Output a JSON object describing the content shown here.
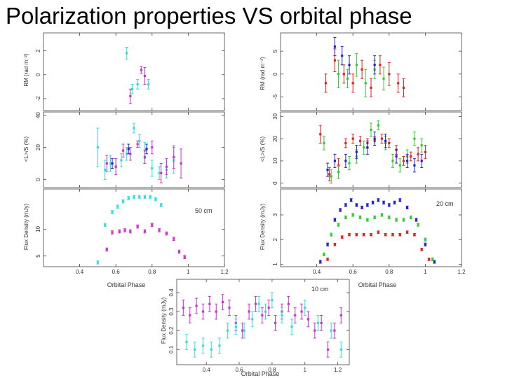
{
  "slide": {
    "title": "Polarization properties VS orbital phase"
  },
  "colors": {
    "cyan": "#33dddd",
    "magenta": "#cc33cc",
    "red": "#dd2222",
    "green": "#33cc33",
    "blue": "#2222cc",
    "axis": "#444444"
  },
  "chart_data": [
    {
      "type": "scatter",
      "name": "panel-50cm",
      "annotation": "50 cm",
      "xlabel": "Orbital Phase",
      "xlim": [
        0.2,
        1.2
      ],
      "xticks": [
        "0.4",
        "0.6",
        "0.8",
        "1",
        "1.2"
      ],
      "subplots": [
        {
          "ylabel": "RM (rad m⁻²)",
          "ylim": [
            -3,
            3.5
          ],
          "yticks": [
            "-2",
            "0",
            "2"
          ],
          "series": [
            {
              "name": "cyan",
              "color": "cyan",
              "x": [
                0.66,
                0.69,
                0.72,
                0.78
              ],
              "y": [
                1.8,
                -1.2,
                -0.8,
                -0.8
              ],
              "err": [
                0.5,
                0.4,
                0.4,
                0.4
              ]
            },
            {
              "name": "magenta",
              "color": "magenta",
              "x": [
                0.68,
                0.74,
                0.76
              ],
              "y": [
                -1.8,
                0.4,
                -0.1
              ],
              "err": [
                0.6,
                0.3,
                0.7
              ]
            }
          ]
        },
        {
          "ylabel": "<L>/S (%)",
          "ylim": [
            -5,
            42
          ],
          "yticks": [
            "0",
            "20",
            "40"
          ],
          "series": [
            {
              "name": "cyan",
              "color": "cyan",
              "x": [
                0.5,
                0.54,
                0.57,
                0.6,
                0.63,
                0.66,
                0.7,
                0.73,
                0.76,
                0.8,
                0.84,
                0.88,
                0.92
              ],
              "y": [
                20,
                6,
                10,
                8,
                12,
                16,
                32,
                24,
                18,
                7,
                4,
                6,
                12
              ],
              "err": [
                12,
                6,
                5,
                5,
                4,
                4,
                3,
                4,
                5,
                5,
                4,
                5,
                8
              ]
            },
            {
              "name": "magenta",
              "color": "magenta",
              "x": [
                0.55,
                0.6,
                0.64,
                0.68,
                0.72,
                0.76,
                0.8,
                0.85,
                0.88,
                0.92,
                0.96
              ],
              "y": [
                10,
                8,
                18,
                16,
                22,
                14,
                20,
                4,
                8,
                14,
                10
              ],
              "err": [
                5,
                5,
                4,
                4,
                2,
                4,
                4,
                6,
                5,
                7,
                9
              ]
            },
            {
              "name": "blue",
              "color": "blue",
              "x": [
                0.58,
                0.67,
                0.77
              ],
              "y": [
                10,
                19,
                19
              ],
              "err": [
                3,
                3,
                3
              ]
            }
          ]
        },
        {
          "ylabel": "Flux Density (mJy)",
          "ylim": [
            3,
            17.5
          ],
          "yticks": [
            "5",
            "10"
          ],
          "series": [
            {
              "name": "cyan",
              "color": "cyan",
              "x": [
                0.5,
                0.54,
                0.58,
                0.61,
                0.64,
                0.67,
                0.7,
                0.73,
                0.76,
                0.79,
                0.82,
                0.85
              ],
              "y": [
                3.8,
                10.8,
                13.2,
                14.2,
                15.2,
                15.8,
                16,
                16,
                16,
                16,
                15.6,
                14.5
              ],
              "err": [
                0.3,
                0.3,
                0.3,
                0.3,
                0.3,
                0.3,
                0.3,
                0.3,
                0.3,
                0.3,
                0.3,
                0.3
              ]
            },
            {
              "name": "magenta",
              "color": "magenta",
              "x": [
                0.55,
                0.58,
                0.62,
                0.65,
                0.68,
                0.72,
                0.76,
                0.8,
                0.84,
                0.88,
                0.92,
                0.95,
                0.98
              ],
              "y": [
                6.2,
                9.4,
                9.6,
                9.8,
                9.6,
                10.5,
                9.6,
                10.8,
                9.8,
                9.2,
                8.2,
                5.8,
                4.8
              ],
              "err": [
                0.3,
                0.3,
                0.3,
                0.3,
                0.3,
                0.3,
                0.3,
                0.3,
                0.3,
                0.3,
                0.3,
                0.3,
                0.3
              ]
            }
          ]
        }
      ]
    },
    {
      "type": "scatter",
      "name": "panel-20cm",
      "annotation": "20 cm",
      "xlabel": "Orbital Phase",
      "xlim": [
        0.2,
        1.2
      ],
      "xticks": [
        "0.4",
        "0.6",
        "0.8",
        "1",
        "1.2"
      ],
      "subplots": [
        {
          "ylabel": "RM (rad m⁻²)",
          "ylim": [
            -8,
            9
          ],
          "yticks": [
            "-5",
            "0",
            "5"
          ],
          "series": [
            {
              "name": "red",
              "color": "red",
              "x": [
                0.45,
                0.5,
                0.55,
                0.6,
                0.65,
                0.7,
                0.75,
                0.8,
                0.85,
                0.88
              ],
              "y": [
                -2,
                3,
                0,
                -2,
                1,
                -3,
                2,
                0,
                -2,
                -3
              ],
              "err": [
                2,
                2.5,
                2,
                2,
                2,
                2,
                2,
                2.5,
                2,
                2
              ]
            },
            {
              "name": "green",
              "color": "green",
              "x": [
                0.52,
                0.57,
                0.62,
                0.67,
                0.72,
                0.77
              ],
              "y": [
                0,
                -1,
                2,
                -2,
                1,
                -1
              ],
              "err": [
                3,
                2,
                2.5,
                3,
                2,
                2.5
              ]
            },
            {
              "name": "blue",
              "color": "blue",
              "x": [
                0.5,
                0.54,
                0.58,
                0.72
              ],
              "y": [
                6,
                4,
                2,
                2
              ],
              "err": [
                2,
                2,
                2,
                2
              ]
            }
          ]
        },
        {
          "ylabel": "<L>/S (%)",
          "ylim": [
            -2,
            32
          ],
          "yticks": [
            "0",
            "10",
            "20",
            "30"
          ],
          "series": [
            {
              "name": "red",
              "color": "red",
              "x": [
                0.42,
                0.47,
                0.52,
                0.56,
                0.6,
                0.64,
                0.68,
                0.72,
                0.76,
                0.8,
                0.84,
                0.88,
                0.92,
                0.96,
                1.0
              ],
              "y": [
                22,
                4,
                8,
                18,
                20,
                19,
                18,
                19,
                20,
                18,
                15,
                10,
                12,
                13,
                14
              ],
              "err": [
                4,
                3,
                3,
                2,
                2,
                2,
                2,
                2,
                2,
                2,
                2,
                2,
                2,
                3,
                3
              ]
            },
            {
              "name": "green",
              "color": "green",
              "x": [
                0.44,
                0.48,
                0.52,
                0.58,
                0.62,
                0.66,
                0.7,
                0.74,
                0.78,
                0.82,
                0.86,
                0.9,
                0.94,
                0.98
              ],
              "y": [
                18,
                3,
                5,
                9,
                12,
                16,
                24,
                26,
                18,
                10,
                8,
                12,
                20,
                17
              ],
              "err": [
                3,
                3,
                3,
                3,
                3,
                3,
                3,
                2,
                3,
                3,
                3,
                3,
                3,
                3
              ]
            },
            {
              "name": "blue",
              "color": "blue",
              "x": [
                0.46,
                0.5,
                0.56,
                0.62,
                0.68,
                0.72,
                0.78,
                0.84,
                0.9,
                0.94,
                0.98
              ],
              "y": [
                6,
                10,
                10,
                14,
                16,
                20,
                19,
                12,
                10,
                8,
                10
              ],
              "err": [
                3,
                3,
                3,
                3,
                3,
                3,
                3,
                3,
                3,
                3,
                3
              ]
            }
          ]
        },
        {
          "ylabel": "Flux Density (mJy)",
          "ylim": [
            0.9,
            4.05
          ],
          "yticks": [
            "1",
            "2",
            "3"
          ],
          "series": [
            {
              "name": "blue",
              "color": "blue",
              "x": [
                0.42,
                0.46,
                0.5,
                0.53,
                0.56,
                0.59,
                0.62,
                0.65,
                0.68,
                0.71,
                0.74,
                0.77,
                0.8,
                0.83,
                0.86,
                0.9,
                0.95,
                1.0,
                1.05
              ],
              "y": [
                1.1,
                1.8,
                2.8,
                3.2,
                3.4,
                3.6,
                3.4,
                3.3,
                3.4,
                3.5,
                3.6,
                3.5,
                3.4,
                3.5,
                3.6,
                3.3,
                2.8,
                1.8,
                1.1
              ],
              "err": [
                0.06,
                0.06,
                0.06,
                0.06,
                0.06,
                0.06,
                0.06,
                0.06,
                0.06,
                0.06,
                0.06,
                0.06,
                0.06,
                0.06,
                0.06,
                0.06,
                0.06,
                0.06,
                0.06
              ]
            },
            {
              "name": "green",
              "color": "green",
              "x": [
                0.44,
                0.48,
                0.52,
                0.56,
                0.6,
                0.64,
                0.68,
                0.72,
                0.76,
                0.8,
                0.84,
                0.88,
                0.92,
                0.96,
                1.0,
                1.04
              ],
              "y": [
                1.4,
                2.2,
                2.6,
                2.9,
                3.0,
                2.9,
                2.8,
                2.9,
                3.0,
                2.9,
                2.8,
                2.8,
                2.9,
                2.6,
                2.0,
                1.2
              ],
              "err": [
                0.06,
                0.06,
                0.06,
                0.06,
                0.06,
                0.06,
                0.06,
                0.06,
                0.06,
                0.06,
                0.06,
                0.06,
                0.06,
                0.06,
                0.06,
                0.06
              ]
            },
            {
              "name": "red",
              "color": "red",
              "x": [
                0.46,
                0.5,
                0.54,
                0.58,
                0.62,
                0.66,
                0.7,
                0.74,
                0.78,
                0.82,
                0.86,
                0.9,
                0.94,
                0.98,
                1.02
              ],
              "y": [
                1.2,
                1.8,
                2.1,
                2.2,
                2.2,
                2.2,
                2.2,
                2.3,
                2.2,
                2.2,
                2.2,
                2.3,
                2.2,
                1.6,
                1.2
              ],
              "err": [
                0.05,
                0.05,
                0.05,
                0.05,
                0.05,
                0.05,
                0.05,
                0.05,
                0.05,
                0.05,
                0.05,
                0.05,
                0.05,
                0.05,
                0.05
              ]
            }
          ]
        }
      ]
    },
    {
      "type": "scatter",
      "name": "panel-10cm",
      "annotation": "10 cm",
      "xlabel": "Orbital Phase",
      "xlim": [
        0.22,
        1.27
      ],
      "xticks": [
        "0.4",
        "0.6",
        "0.8",
        "1",
        "1.2"
      ],
      "subplots": [
        {
          "ylabel": "Flux Density (mJy)",
          "ylim": [
            0.02,
            0.47
          ],
          "yticks": [
            "0.1",
            "0.2",
            "0.3",
            "0.4"
          ],
          "series": [
            {
              "name": "magenta",
              "color": "magenta",
              "x": [
                0.26,
                0.3,
                0.34,
                0.38,
                0.42,
                0.46,
                0.5,
                0.54,
                0.58,
                0.62,
                0.66,
                0.7,
                0.74,
                0.78,
                0.82,
                0.86,
                0.9,
                0.94,
                0.98,
                1.02,
                1.06,
                1.1,
                1.14,
                1.18,
                1.22
              ],
              "y": [
                0.32,
                0.28,
                0.33,
                0.3,
                0.34,
                0.3,
                0.35,
                0.32,
                0.24,
                0.2,
                0.3,
                0.34,
                0.28,
                0.32,
                0.24,
                0.3,
                0.34,
                0.28,
                0.3,
                0.26,
                0.2,
                0.24,
                0.1,
                0.2,
                0.28
              ],
              "err": [
                0.04,
                0.04,
                0.04,
                0.04,
                0.04,
                0.04,
                0.04,
                0.04,
                0.04,
                0.04,
                0.04,
                0.04,
                0.04,
                0.04,
                0.04,
                0.04,
                0.04,
                0.04,
                0.04,
                0.04,
                0.04,
                0.04,
                0.04,
                0.04,
                0.04
              ]
            },
            {
              "name": "cyan",
              "color": "cyan",
              "x": [
                0.28,
                0.33,
                0.38,
                0.43,
                0.48,
                0.53,
                0.58,
                0.63,
                0.68,
                0.72,
                0.76,
                0.8,
                0.86,
                0.92,
                1.0,
                1.08,
                1.16,
                1.22
              ],
              "y": [
                0.14,
                0.1,
                0.12,
                0.1,
                0.12,
                0.2,
                0.22,
                0.2,
                0.26,
                0.34,
                0.3,
                0.36,
                0.28,
                0.22,
                0.32,
                0.24,
                0.2,
                0.1
              ],
              "err": [
                0.04,
                0.04,
                0.04,
                0.04,
                0.04,
                0.04,
                0.04,
                0.04,
                0.04,
                0.04,
                0.04,
                0.04,
                0.04,
                0.04,
                0.04,
                0.04,
                0.04,
                0.04
              ]
            }
          ]
        }
      ]
    }
  ]
}
